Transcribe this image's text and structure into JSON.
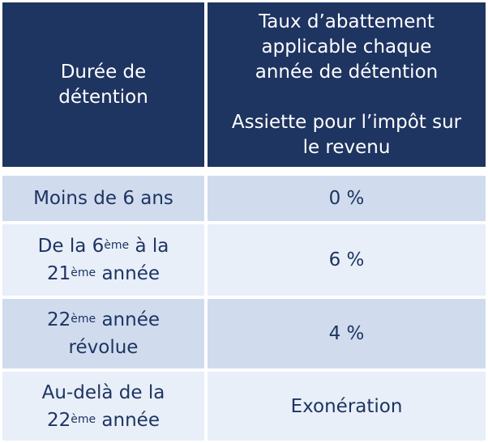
{
  "header": {
    "col1_line1": "Durée de",
    "col1_line2": "détention",
    "col2_line1": "Taux d’abattement",
    "col2_line2": "applicable chaque",
    "col2_line3": "année de détention",
    "col2_line4": "Assiette pour l’impôt sur",
    "col2_line5": "le revenu"
  },
  "rows": [
    {
      "duration": "Moins de 6 ans",
      "rate": "0 %"
    },
    {
      "duration_a": "De la 6",
      "duration_sup1": "ème",
      "duration_b": " à la",
      "duration_c": "21",
      "duration_sup2": "ème",
      "duration_d": " année",
      "rate": "6 %"
    },
    {
      "duration_a": "22",
      "duration_sup": "ème",
      "duration_b": " année",
      "duration_c": "révolue",
      "rate": "4 %"
    },
    {
      "duration_a": "Au-delà de la",
      "duration_b": "22",
      "duration_sup": "ème",
      "duration_c": " année",
      "rate": "Exonération"
    }
  ],
  "colors": {
    "header_bg": "#1e3461",
    "row_dark": "#d0dcee",
    "row_light": "#e8eff9",
    "text": "#1e3461"
  }
}
